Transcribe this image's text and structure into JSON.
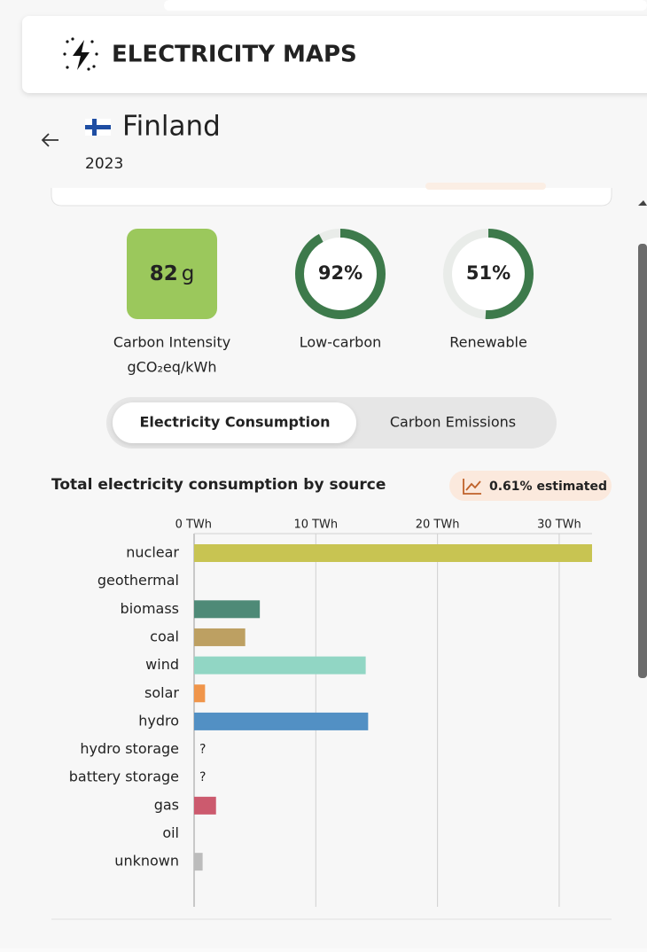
{
  "header": {
    "title": "ELECTRICITY MAPS"
  },
  "zone": {
    "name": "Finland",
    "year": "2023"
  },
  "metrics": {
    "carbon_intensity": {
      "value": 82,
      "unit": "g",
      "label": "Carbon Intensity",
      "unit_label": "gCO₂eq/kWh",
      "color": "#9bc85c"
    },
    "low_carbon": {
      "value": 92,
      "value_label": "92%",
      "label": "Low-carbon",
      "color": "#3d7a4b"
    },
    "renewable": {
      "value": 51,
      "value_label": "51%",
      "label": "Renewable",
      "color": "#3d7a4b"
    }
  },
  "tabs": [
    "Electricity Consumption",
    "Carbon Emissions"
  ],
  "active_tab": 0,
  "chart_data": {
    "type": "bar",
    "orientation": "horizontal",
    "title": "Total electricity consumption by source",
    "badge": "0.61% estimated",
    "categories": [
      "nuclear",
      "geothermal",
      "biomass",
      "coal",
      "wind",
      "solar",
      "hydro",
      "hydro storage",
      "battery storage",
      "gas",
      "oil",
      "unknown"
    ],
    "values": [
      32.7,
      0,
      5.4,
      4.2,
      14.1,
      0.9,
      14.3,
      null,
      null,
      1.8,
      0,
      0.7
    ],
    "value_labels": [
      null,
      null,
      null,
      null,
      null,
      null,
      null,
      "?",
      "?",
      null,
      null,
      null
    ],
    "colors": [
      "#c8c452",
      "#c8c8c8",
      "#4e8a77",
      "#bda062",
      "#91d6c4",
      "#f0954a",
      "#5290c4",
      "#c8c8c8",
      "#c8c8c8",
      "#cc5a6e",
      "#c8c8c8",
      "#bcbcbc"
    ],
    "xlim": [
      0,
      32.7
    ],
    "xticks": [
      {
        "value": 0,
        "label": "0 TWh"
      },
      {
        "value": 10,
        "label": "10 TWh"
      },
      {
        "value": 20,
        "label": "20 TWh"
      },
      {
        "value": 30,
        "label": "30 TWh"
      }
    ],
    "grid": true
  }
}
